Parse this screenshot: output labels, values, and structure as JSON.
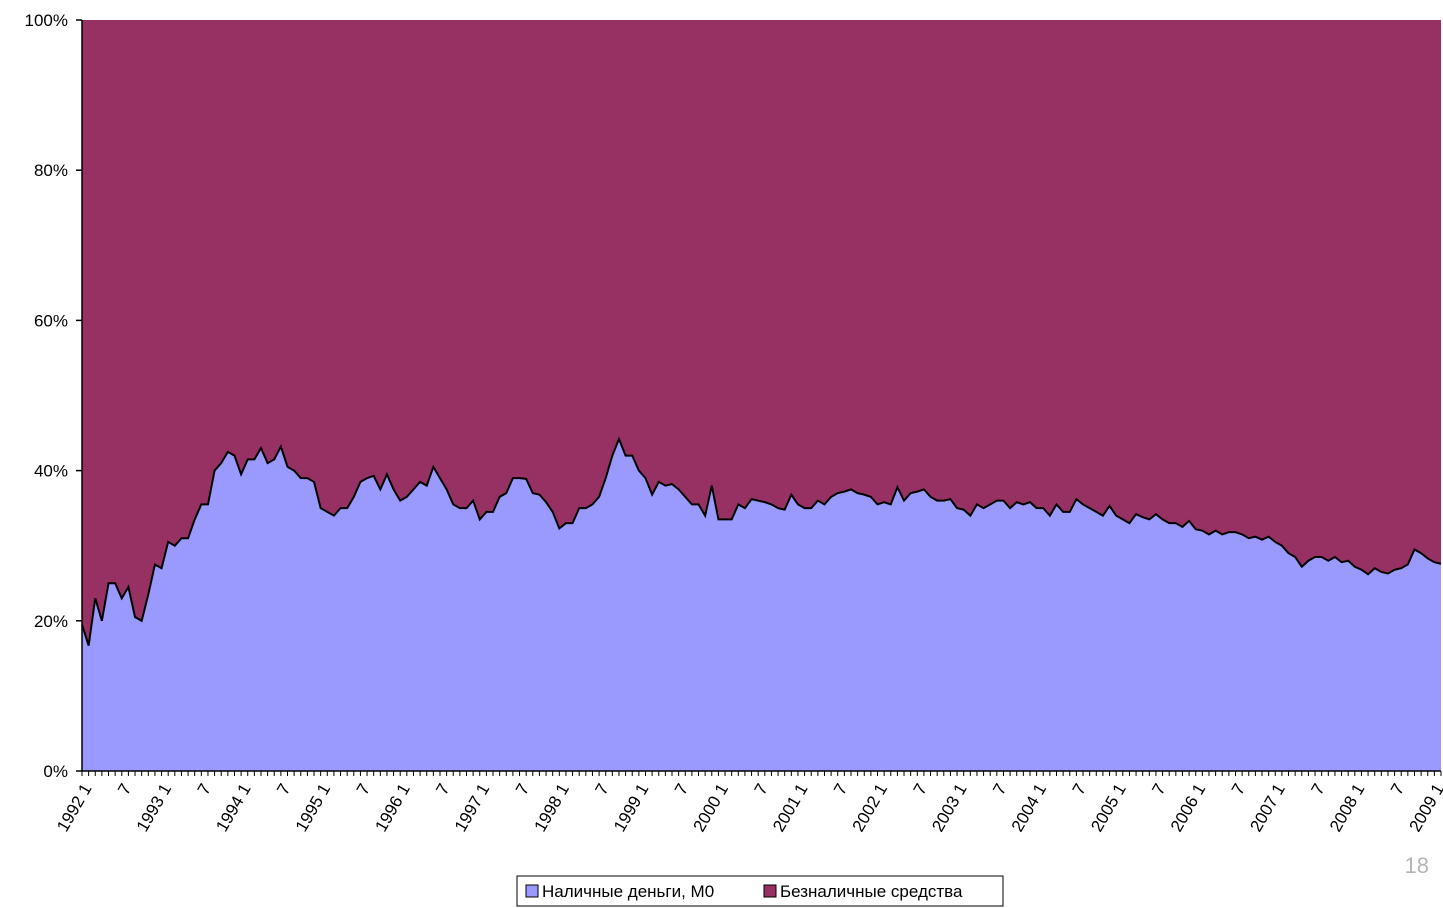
{
  "page_number": "18",
  "colors": {
    "m0": "#9a9afe",
    "noncash": "#983163",
    "line": "#000000",
    "axis": "#000000"
  },
  "chart_data": {
    "type": "area",
    "stacked": "percent",
    "xlabel": "",
    "ylabel": "",
    "ylim": [
      0,
      100
    ],
    "yticks": [
      "0%",
      "20%",
      "40%",
      "60%",
      "80%",
      "100%"
    ],
    "ytick_values": [
      0,
      20,
      40,
      60,
      80,
      100
    ],
    "xtick_labels": [
      {
        "month": 0,
        "label": "1992 1"
      },
      {
        "month": 6,
        "label": "7"
      },
      {
        "month": 12,
        "label": "1993 1"
      },
      {
        "month": 18,
        "label": "7"
      },
      {
        "month": 24,
        "label": "1994 1"
      },
      {
        "month": 30,
        "label": "7"
      },
      {
        "month": 36,
        "label": "1995 1"
      },
      {
        "month": 42,
        "label": "7"
      },
      {
        "month": 48,
        "label": "1996 1"
      },
      {
        "month": 54,
        "label": "7"
      },
      {
        "month": 60,
        "label": "1997 1"
      },
      {
        "month": 66,
        "label": "7"
      },
      {
        "month": 72,
        "label": "1998 1"
      },
      {
        "month": 78,
        "label": "7"
      },
      {
        "month": 84,
        "label": "1999 1"
      },
      {
        "month": 90,
        "label": "7"
      },
      {
        "month": 96,
        "label": "2000 1"
      },
      {
        "month": 102,
        "label": "7"
      },
      {
        "month": 108,
        "label": "2001 1"
      },
      {
        "month": 114,
        "label": "7"
      },
      {
        "month": 120,
        "label": "2002 1"
      },
      {
        "month": 126,
        "label": "7"
      },
      {
        "month": 132,
        "label": "2003 1"
      },
      {
        "month": 138,
        "label": "7"
      },
      {
        "month": 144,
        "label": "2004 1"
      },
      {
        "month": 150,
        "label": "7"
      },
      {
        "month": 156,
        "label": "2005 1"
      },
      {
        "month": 162,
        "label": "7"
      },
      {
        "month": 168,
        "label": "2006 1"
      },
      {
        "month": 174,
        "label": "7"
      },
      {
        "month": 180,
        "label": "2007 1"
      },
      {
        "month": 186,
        "label": "7"
      },
      {
        "month": 192,
        "label": "2008 1"
      },
      {
        "month": 198,
        "label": "7"
      },
      {
        "month": 204,
        "label": "2009 1"
      }
    ],
    "legend": {
      "placement": "bottom-center"
    },
    "series": [
      {
        "name": "Наличные деньги, М0",
        "key": "m0",
        "points": [
          [
            0,
            19.5
          ],
          [
            1,
            16.7
          ],
          [
            2,
            23.0
          ],
          [
            3,
            20.0
          ],
          [
            4,
            25.0
          ],
          [
            5,
            25.0
          ],
          [
            6,
            23.0
          ],
          [
            7,
            24.5
          ],
          [
            8,
            20.5
          ],
          [
            9,
            20.0
          ],
          [
            10,
            23.5
          ],
          [
            11,
            27.5
          ],
          [
            12,
            27.0
          ],
          [
            13,
            30.5
          ],
          [
            14,
            30.0
          ],
          [
            15,
            31.0
          ],
          [
            16,
            31.0
          ],
          [
            17,
            33.5
          ],
          [
            18,
            35.5
          ],
          [
            19,
            35.5
          ],
          [
            20,
            40.0
          ],
          [
            21,
            41.0
          ],
          [
            22,
            42.5
          ],
          [
            23,
            42.0
          ],
          [
            24,
            39.5
          ],
          [
            25,
            41.5
          ],
          [
            26,
            41.5
          ],
          [
            27,
            43.0
          ],
          [
            28,
            41.0
          ],
          [
            29,
            41.5
          ],
          [
            30,
            43.2
          ],
          [
            31,
            40.5
          ],
          [
            32,
            40.0
          ],
          [
            33,
            39.0
          ],
          [
            34,
            39.0
          ],
          [
            35,
            38.5
          ],
          [
            36,
            35.0
          ],
          [
            37,
            34.5
          ],
          [
            38,
            34.0
          ],
          [
            39,
            35.0
          ],
          [
            40,
            35.0
          ],
          [
            41,
            36.5
          ],
          [
            42,
            38.5
          ],
          [
            43,
            39.0
          ],
          [
            44,
            39.3
          ],
          [
            45,
            37.5
          ],
          [
            46,
            39.5
          ],
          [
            47,
            37.5
          ],
          [
            48,
            36.0
          ],
          [
            49,
            36.5
          ],
          [
            50,
            37.5
          ],
          [
            51,
            38.5
          ],
          [
            52,
            38.0
          ],
          [
            53,
            40.5
          ],
          [
            54,
            39.0
          ],
          [
            55,
            37.5
          ],
          [
            56,
            35.5
          ],
          [
            57,
            35.0
          ],
          [
            58,
            35.0
          ],
          [
            59,
            36.0
          ],
          [
            60,
            33.5
          ],
          [
            61,
            34.5
          ],
          [
            62,
            34.5
          ],
          [
            63,
            36.5
          ],
          [
            64,
            37.0
          ],
          [
            65,
            39.0
          ],
          [
            66,
            39.0
          ],
          [
            67,
            38.9
          ],
          [
            68,
            37.0
          ],
          [
            69,
            36.8
          ],
          [
            70,
            35.8
          ],
          [
            71,
            34.5
          ],
          [
            72,
            32.3
          ],
          [
            73,
            33.0
          ],
          [
            74,
            33.0
          ],
          [
            75,
            35.0
          ],
          [
            76,
            35.0
          ],
          [
            77,
            35.5
          ],
          [
            78,
            36.5
          ],
          [
            79,
            39.0
          ],
          [
            80,
            42.0
          ],
          [
            81,
            44.2
          ],
          [
            82,
            42.0
          ],
          [
            83,
            42.0
          ],
          [
            84,
            40.0
          ],
          [
            85,
            39.0
          ],
          [
            86,
            36.8
          ],
          [
            87,
            38.5
          ],
          [
            88,
            38.0
          ],
          [
            89,
            38.2
          ],
          [
            90,
            37.5
          ],
          [
            91,
            36.5
          ],
          [
            92,
            35.5
          ],
          [
            93,
            35.5
          ],
          [
            94,
            34.0
          ],
          [
            95,
            38.0
          ],
          [
            96,
            33.5
          ],
          [
            97,
            33.5
          ],
          [
            98,
            33.5
          ],
          [
            99,
            35.5
          ],
          [
            100,
            35.0
          ],
          [
            101,
            36.2
          ],
          [
            102,
            36.0
          ],
          [
            103,
            35.8
          ],
          [
            104,
            35.5
          ],
          [
            105,
            35.0
          ],
          [
            106,
            34.8
          ],
          [
            107,
            36.8
          ],
          [
            108,
            35.5
          ],
          [
            109,
            35.0
          ],
          [
            110,
            35.0
          ],
          [
            111,
            36.0
          ],
          [
            112,
            35.5
          ],
          [
            113,
            36.5
          ],
          [
            114,
            37.0
          ],
          [
            115,
            37.2
          ],
          [
            116,
            37.5
          ],
          [
            117,
            37.0
          ],
          [
            118,
            36.8
          ],
          [
            119,
            36.5
          ],
          [
            120,
            35.5
          ],
          [
            121,
            35.8
          ],
          [
            122,
            35.5
          ],
          [
            123,
            37.8
          ],
          [
            124,
            36.0
          ],
          [
            125,
            37.0
          ],
          [
            126,
            37.2
          ],
          [
            127,
            37.5
          ],
          [
            128,
            36.5
          ],
          [
            129,
            36.0
          ],
          [
            130,
            36.0
          ],
          [
            131,
            36.2
          ],
          [
            132,
            35.0
          ],
          [
            133,
            34.8
          ],
          [
            134,
            34.0
          ],
          [
            135,
            35.5
          ],
          [
            136,
            35.0
          ],
          [
            137,
            35.5
          ],
          [
            138,
            36.0
          ],
          [
            139,
            36.0
          ],
          [
            140,
            35.0
          ],
          [
            141,
            35.8
          ],
          [
            142,
            35.5
          ],
          [
            143,
            35.8
          ],
          [
            144,
            35.0
          ],
          [
            145,
            35.0
          ],
          [
            146,
            34.0
          ],
          [
            147,
            35.5
          ],
          [
            148,
            34.5
          ],
          [
            149,
            34.5
          ],
          [
            150,
            36.2
          ],
          [
            151,
            35.5
          ],
          [
            152,
            35.0
          ],
          [
            153,
            34.5
          ],
          [
            154,
            34.0
          ],
          [
            155,
            35.3
          ],
          [
            156,
            34.0
          ],
          [
            157,
            33.5
          ],
          [
            158,
            33.0
          ],
          [
            159,
            34.2
          ],
          [
            160,
            33.8
          ],
          [
            161,
            33.5
          ],
          [
            162,
            34.2
          ],
          [
            163,
            33.5
          ],
          [
            164,
            33.0
          ],
          [
            165,
            33.0
          ],
          [
            166,
            32.5
          ],
          [
            167,
            33.3
          ],
          [
            168,
            32.2
          ],
          [
            169,
            32.0
          ],
          [
            170,
            31.5
          ],
          [
            171,
            32.0
          ],
          [
            172,
            31.5
          ],
          [
            173,
            31.8
          ],
          [
            174,
            31.8
          ],
          [
            175,
            31.5
          ],
          [
            176,
            31.0
          ],
          [
            177,
            31.2
          ],
          [
            178,
            30.8
          ],
          [
            179,
            31.2
          ],
          [
            180,
            30.5
          ],
          [
            181,
            30.0
          ],
          [
            182,
            29.0
          ],
          [
            183,
            28.5
          ],
          [
            184,
            27.2
          ],
          [
            185,
            28.0
          ],
          [
            186,
            28.5
          ],
          [
            187,
            28.5
          ],
          [
            188,
            28.0
          ],
          [
            189,
            28.5
          ],
          [
            190,
            27.8
          ],
          [
            191,
            28.0
          ],
          [
            192,
            27.2
          ],
          [
            193,
            26.8
          ],
          [
            194,
            26.2
          ],
          [
            195,
            27.0
          ],
          [
            196,
            26.5
          ],
          [
            197,
            26.3
          ],
          [
            198,
            26.8
          ],
          [
            199,
            27.0
          ],
          [
            200,
            27.5
          ],
          [
            201,
            29.5
          ],
          [
            202,
            29.0
          ],
          [
            203,
            28.3
          ],
          [
            204,
            27.8
          ],
          [
            205,
            27.6
          ]
        ]
      },
      {
        "name": "Безналичные средства",
        "key": "noncash",
        "note": "remainder to 100%"
      }
    ]
  }
}
